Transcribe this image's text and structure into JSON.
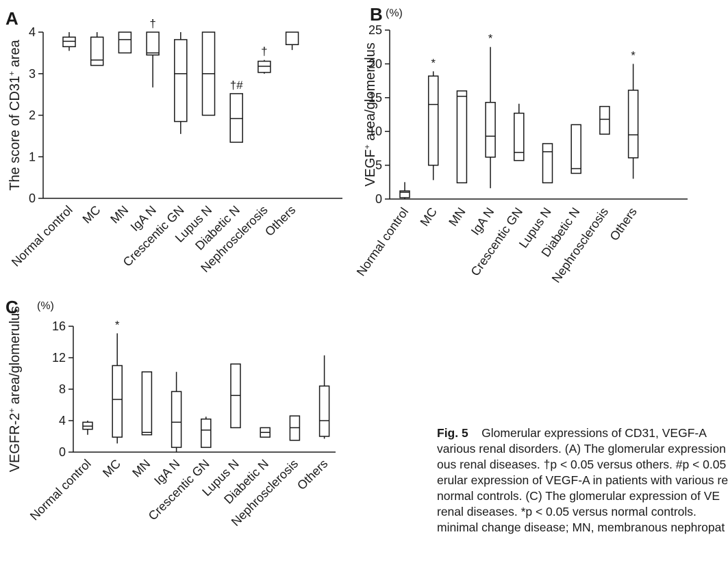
{
  "chart_data": [
    {
      "panel": "A",
      "type": "box",
      "unit": "",
      "ylabel": "The score of CD31",
      "ylabel_sup": "+",
      "ylabel_tail": " area",
      "ylim": [
        0,
        4
      ],
      "yticks": [
        "0",
        "1",
        "2",
        "3",
        "4"
      ],
      "categories": [
        "Normal control",
        "MC",
        "MN",
        "IgA N",
        "Crescentic GN",
        "Lupus N",
        "Diabetic N",
        "Nephrosclerosis",
        "Others"
      ],
      "boxes": [
        {
          "min": 3.55,
          "q1": 3.65,
          "median": 3.78,
          "q3": 3.88,
          "max": 4.0,
          "mark": ""
        },
        {
          "min": 3.2,
          "q1": 3.2,
          "median": 3.33,
          "q3": 3.88,
          "max": 4.0,
          "mark": ""
        },
        {
          "min": 3.5,
          "q1": 3.5,
          "median": 3.82,
          "q3": 4.0,
          "max": 4.0,
          "mark": ""
        },
        {
          "min": 2.67,
          "q1": 3.45,
          "median": 3.5,
          "q3": 4.0,
          "max": 4.0,
          "mark": "†"
        },
        {
          "min": 1.55,
          "q1": 1.85,
          "median": 3.0,
          "q3": 3.82,
          "max": 4.0,
          "mark": ""
        },
        {
          "min": 2.0,
          "q1": 2.0,
          "median": 3.0,
          "q3": 4.0,
          "max": 4.0,
          "mark": ""
        },
        {
          "min": 1.35,
          "q1": 1.35,
          "median": 1.92,
          "q3": 2.52,
          "max": 2.52,
          "mark": "†#"
        },
        {
          "min": 3.0,
          "q1": 3.03,
          "median": 3.18,
          "q3": 3.3,
          "max": 3.33,
          "mark": "†"
        },
        {
          "min": 3.57,
          "q1": 3.7,
          "median": 3.7,
          "q3": 4.0,
          "max": 4.0,
          "mark": ""
        }
      ]
    },
    {
      "panel": "B",
      "type": "box",
      "unit": "(%)",
      "ylabel": "VEGF",
      "ylabel_sup": "+",
      "ylabel_tail": " area/glomerulus",
      "ylim": [
        0,
        25
      ],
      "yticks": [
        "0",
        "5",
        "10",
        "15",
        "20",
        "25"
      ],
      "categories": [
        "Normal control",
        "MC",
        "MN",
        "IgA N",
        "Crescentic GN",
        "Lupus N",
        "Diabetic N",
        "Nephrosclerosis",
        "Others"
      ],
      "boxes": [
        {
          "min": 0.0,
          "q1": 0.2,
          "median": 1.0,
          "q3": 1.2,
          "max": 2.5,
          "mark": ""
        },
        {
          "min": 2.8,
          "q1": 5.0,
          "median": 14.0,
          "q3": 18.2,
          "max": 18.9,
          "mark": "*"
        },
        {
          "min": 2.4,
          "q1": 2.4,
          "median": 15.2,
          "q3": 16.0,
          "max": 16.0,
          "mark": ""
        },
        {
          "min": 1.6,
          "q1": 6.2,
          "median": 9.3,
          "q3": 14.3,
          "max": 22.5,
          "mark": "*"
        },
        {
          "min": 5.7,
          "q1": 5.7,
          "median": 6.9,
          "q3": 12.7,
          "max": 14.1,
          "mark": ""
        },
        {
          "min": 2.4,
          "q1": 2.4,
          "median": 7.0,
          "q3": 8.2,
          "max": 8.2,
          "mark": ""
        },
        {
          "min": 3.8,
          "q1": 3.8,
          "median": 4.5,
          "q3": 11.0,
          "max": 11.0,
          "mark": ""
        },
        {
          "min": 9.6,
          "q1": 9.6,
          "median": 11.8,
          "q3": 13.7,
          "max": 13.7,
          "mark": ""
        },
        {
          "min": 3.0,
          "q1": 6.1,
          "median": 9.5,
          "q3": 16.1,
          "max": 20.0,
          "mark": "*"
        }
      ]
    },
    {
      "panel": "C",
      "type": "box",
      "unit": "(%)",
      "ylabel": "VEGFR-2",
      "ylabel_sup": "+",
      "ylabel_tail": " area/glomerulus",
      "ylim": [
        0,
        16
      ],
      "yticks": [
        "0",
        "4",
        "8",
        "12",
        "16"
      ],
      "categories": [
        "Normal control",
        "MC",
        "MN",
        "IgA N",
        "Crescentic GN",
        "Lupus N",
        "Diabetic N",
        "Nephrosclerosis",
        "Others"
      ],
      "boxes": [
        {
          "min": 2.2,
          "q1": 2.9,
          "median": 3.3,
          "q3": 3.8,
          "max": 4.0,
          "mark": ""
        },
        {
          "min": 1.1,
          "q1": 1.9,
          "median": 6.7,
          "q3": 11.0,
          "max": 15.1,
          "mark": "*"
        },
        {
          "min": 2.2,
          "q1": 2.2,
          "median": 2.5,
          "q3": 10.2,
          "max": 10.2,
          "mark": ""
        },
        {
          "min": 0.0,
          "q1": 0.6,
          "median": 3.8,
          "q3": 7.7,
          "max": 10.2,
          "mark": ""
        },
        {
          "min": 0.6,
          "q1": 0.6,
          "median": 2.8,
          "q3": 4.2,
          "max": 4.5,
          "mark": ""
        },
        {
          "min": 3.1,
          "q1": 3.1,
          "median": 7.2,
          "q3": 11.2,
          "max": 11.2,
          "mark": ""
        },
        {
          "min": 1.9,
          "q1": 1.9,
          "median": 2.5,
          "q3": 3.1,
          "max": 3.1,
          "mark": ""
        },
        {
          "min": 1.5,
          "q1": 1.5,
          "median": 3.1,
          "q3": 4.6,
          "max": 4.6,
          "mark": ""
        },
        {
          "min": 1.7,
          "q1": 2.0,
          "median": 4.0,
          "q3": 8.4,
          "max": 12.3,
          "mark": ""
        }
      ]
    }
  ],
  "caption": {
    "label": "Fig. 5",
    "lines": [
      "Glomerular expressions of CD31, VEGF-A",
      "various renal disorders. (A) The glomerular expression",
      "ous renal diseases. †p < 0.05 versus others. #p < 0.05",
      "erular expression of VEGF-A in patients with various re",
      "normal controls. (C) The glomerular expression of VE",
      "renal diseases. *p < 0.05 versus normal controls.",
      "minimal change disease; MN, membranous nephropat"
    ]
  }
}
